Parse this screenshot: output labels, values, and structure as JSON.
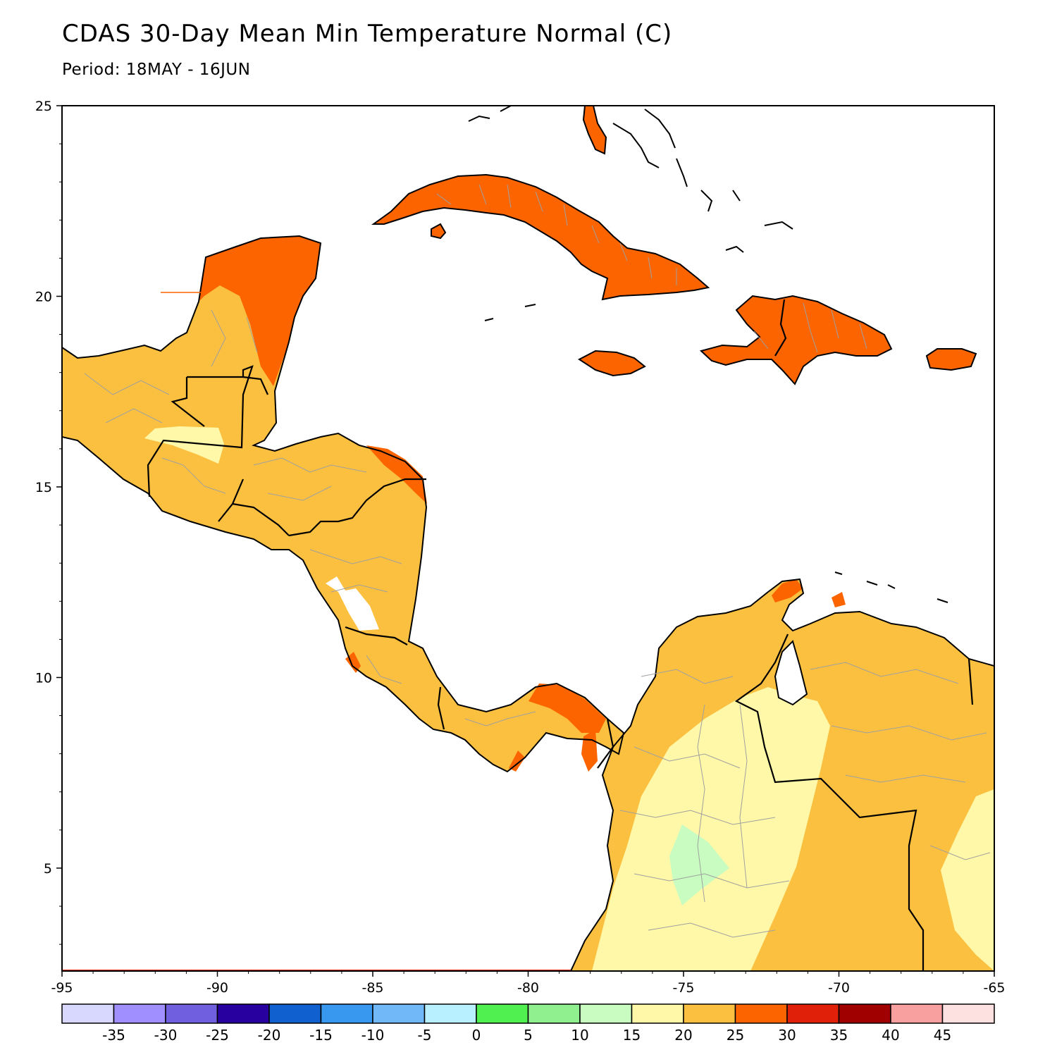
{
  "title": "CDAS 30-Day Mean Min Temperature Normal (C)",
  "subtitle": "Period: 18MAY - 16JUN",
  "map": {
    "extent": {
      "lon_min": -95,
      "lon_max": -65,
      "lat_min": 2.3,
      "lat_max": 25
    },
    "x_ticks": [
      -95,
      -90,
      -85,
      -80,
      -75,
      -70,
      -65
    ],
    "x_tick_labels": [
      "-95",
      "-90",
      "-85",
      "-80",
      "-75",
      "-70",
      "-65"
    ],
    "y_ticks": [
      5,
      10,
      15,
      20,
      25
    ],
    "y_tick_labels": [
      "5",
      "10",
      "15",
      "20",
      "25"
    ],
    "region": "Central America and the Caribbean",
    "land_outline_color": "#000000",
    "internal_border_color": "#a0a0a0"
  },
  "colorbar": {
    "colors": [
      "#d8d8ff",
      "#a090ff",
      "#7060e0",
      "#2800a0",
      "#1060d0",
      "#3898f0",
      "#70b8f8",
      "#b8f0ff",
      "#50f050",
      "#90f090",
      "#c8fcc0",
      "#fff8a8",
      "#fcc040",
      "#fc6400",
      "#e02008",
      "#a00000",
      "#f8a0a0",
      "#fde0e0"
    ],
    "labels": [
      "-35",
      "-30",
      "-25",
      "-20",
      "-15",
      "-10",
      "-5",
      "0",
      "5",
      "10",
      "15",
      "20",
      "25",
      "30",
      "35",
      "40",
      "45"
    ]
  },
  "fill_colors": {
    "c15_20": "#c8fcc0",
    "c20_25": "#fff8a8",
    "c25_30": "#fcc040",
    "c30_35": "#fc6400"
  }
}
